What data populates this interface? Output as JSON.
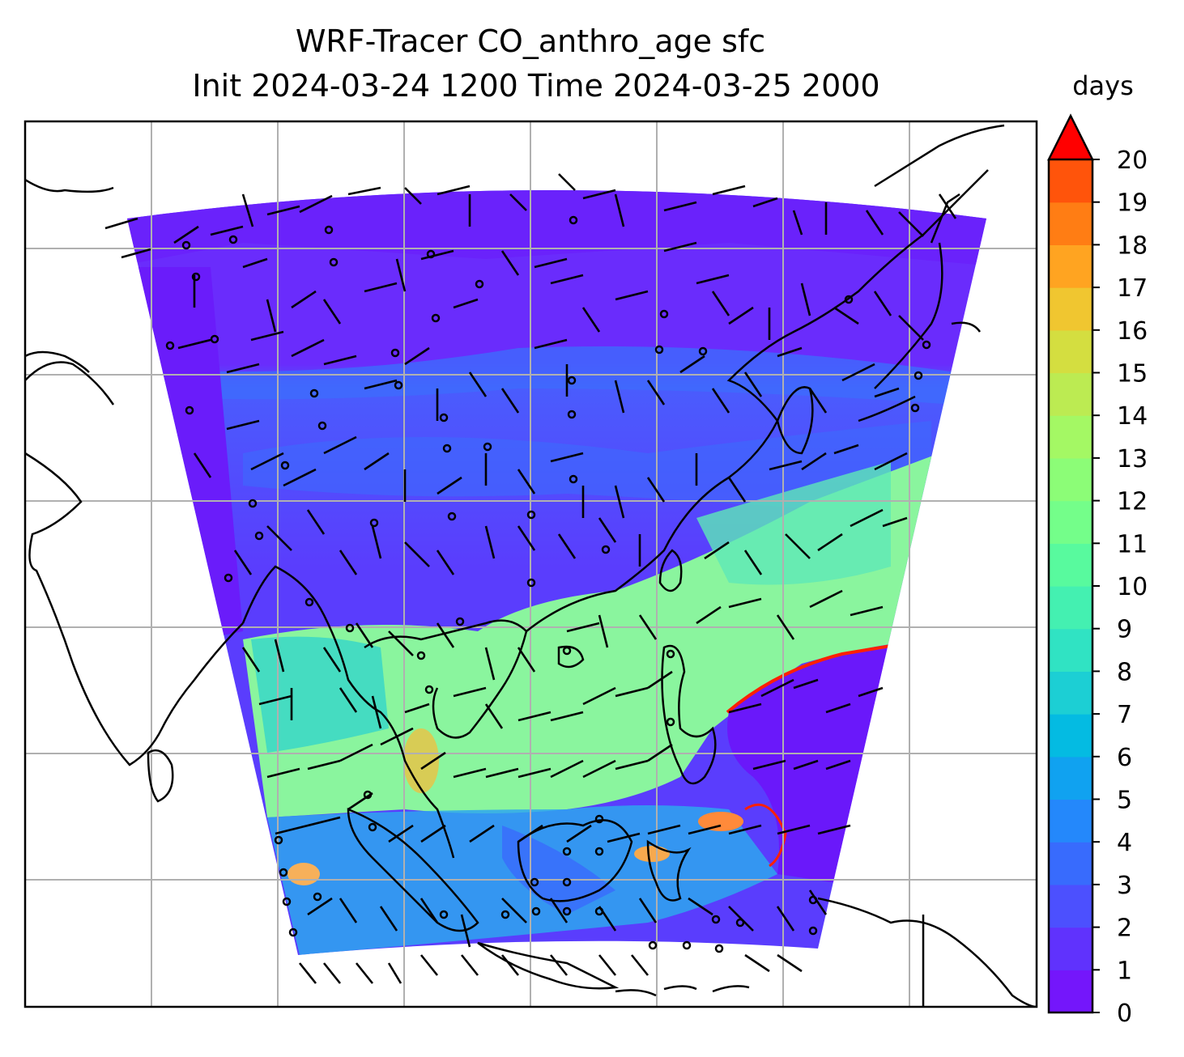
{
  "title": {
    "line1": "WRF-Tracer CO_anthro_age sfc",
    "line2": "Init 2024-03-24 1200 Time 2024-03-25 2000"
  },
  "colorbar": {
    "label": "days",
    "min": 0,
    "max": 20,
    "extend": "max",
    "ticks": [
      "0",
      "1",
      "2",
      "3",
      "4",
      "5",
      "6",
      "7",
      "8",
      "9",
      "10",
      "11",
      "12",
      "13",
      "14",
      "15",
      "16",
      "17",
      "18",
      "19",
      "20"
    ],
    "colors": [
      "#7416fb",
      "#6032fd",
      "#4c50fe",
      "#386bfd",
      "#2488fb",
      "#10a2f0",
      "#04bbe2",
      "#1ccfd4",
      "#30e3c3",
      "#44f0b1",
      "#58fa9e",
      "#74fe8a",
      "#8cfd77",
      "#a4f864",
      "#bceb52",
      "#d4de40",
      "#f0c630",
      "#ffa421",
      "#ff7d14",
      "#ff540b",
      "#ff2a02"
    ],
    "extend_color": "#ff0000"
  },
  "map": {
    "background_field": "age of anthropogenic CO tracer",
    "overlays": [
      "coastlines",
      "country borders",
      "gridlines",
      "wind barbs"
    ],
    "gridlines": true
  }
}
